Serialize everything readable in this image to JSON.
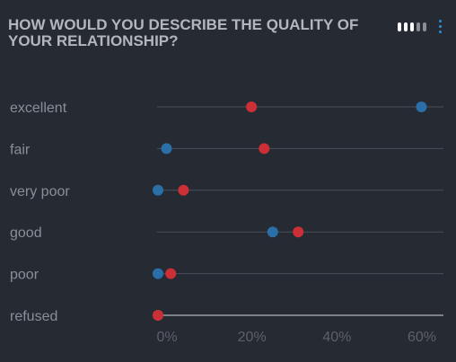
{
  "title": "HOW WOULD YOU DESCRIBE THE QUALITY OF YOUR RELATIONSHIP?",
  "icons": {
    "view": "bars-icon",
    "menu": "vertical-dots-icon"
  },
  "colors": {
    "background": "#262a33",
    "series_a": "#cc2f35",
    "series_b": "#2b6fa8",
    "row_line": "#4a4e57",
    "category_text": "#8a8e97",
    "tick_text": "#5d6068"
  },
  "chart_data": {
    "type": "dot-plot",
    "title": "HOW WOULD YOU DESCRIBE THE QUALITY OF YOUR RELATIONSHIP?",
    "categories": [
      "excellent",
      "fair",
      "very poor",
      "good",
      "poor",
      "refused"
    ],
    "series": [
      {
        "color": "#cc2f35",
        "values": [
          22,
          25,
          6,
          33,
          3,
          0
        ]
      },
      {
        "color": "#2b6fa8",
        "values": [
          62,
          2,
          0,
          27,
          0,
          0
        ]
      }
    ],
    "xlim": [
      -2,
      63
    ],
    "xticks": [
      0,
      20,
      40,
      60
    ],
    "xtick_labels": [
      "0%",
      "20%",
      "40%",
      "60%"
    ],
    "legend": "none",
    "grid": false
  }
}
